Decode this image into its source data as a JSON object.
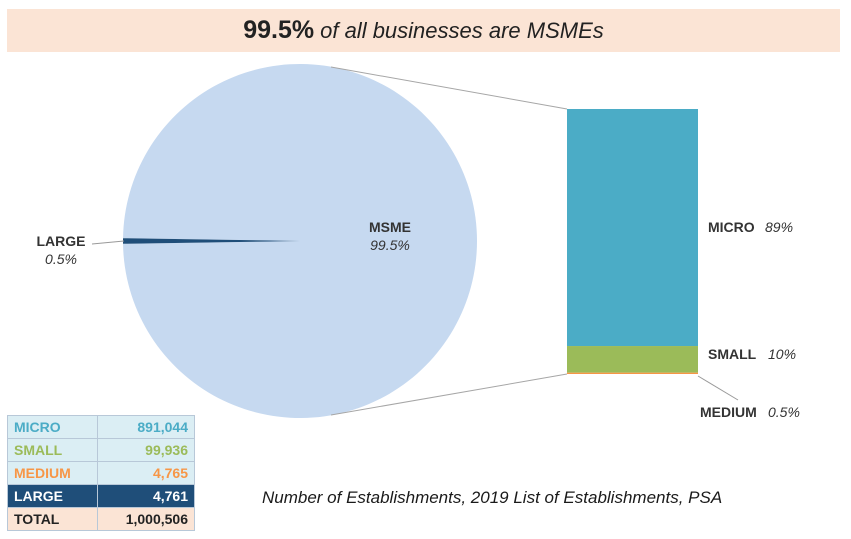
{
  "banner": {
    "big": "99.5%",
    "rest": "of all businesses are MSMEs"
  },
  "chart_data": {
    "type": "pie",
    "pie": {
      "slices": [
        {
          "name": "MSME",
          "value": 99.5,
          "pct_label": "99.5%",
          "color": "#c6d9f0"
        },
        {
          "name": "LARGE",
          "value": 0.5,
          "pct_label": "0.5%",
          "color": "#1f4e79"
        }
      ]
    },
    "breakdown": {
      "type": "stacked-bar",
      "segments": [
        {
          "name": "MICRO",
          "value": 89,
          "pct_label": "89%",
          "color": "#4bacc6"
        },
        {
          "name": "SMALL",
          "value": 10,
          "pct_label": "10%",
          "color": "#9bbb59"
        },
        {
          "name": "MEDIUM",
          "value": 0.5,
          "pct_label": "0.5%",
          "color": "#f79646"
        }
      ]
    }
  },
  "table": {
    "rows": [
      {
        "label": "MICRO",
        "value": "891,044",
        "text_color": "#4bacc6",
        "bg": "#dbeef4"
      },
      {
        "label": "SMALL",
        "value": "99,936",
        "text_color": "#9bbb59",
        "bg": "#dbeef4"
      },
      {
        "label": "MEDIUM",
        "value": "4,765",
        "text_color": "#f79646",
        "bg": "#dbeef4"
      },
      {
        "label": "LARGE",
        "value": "4,761",
        "text_color": "#ffffff",
        "bg": "#1f4e79"
      },
      {
        "label": "TOTAL",
        "value": "1,000,506",
        "text_color": "#222222",
        "bg": "#fbe4d5"
      }
    ]
  },
  "caption": "Number of Establishments, 2019 List of Establishments, PSA"
}
